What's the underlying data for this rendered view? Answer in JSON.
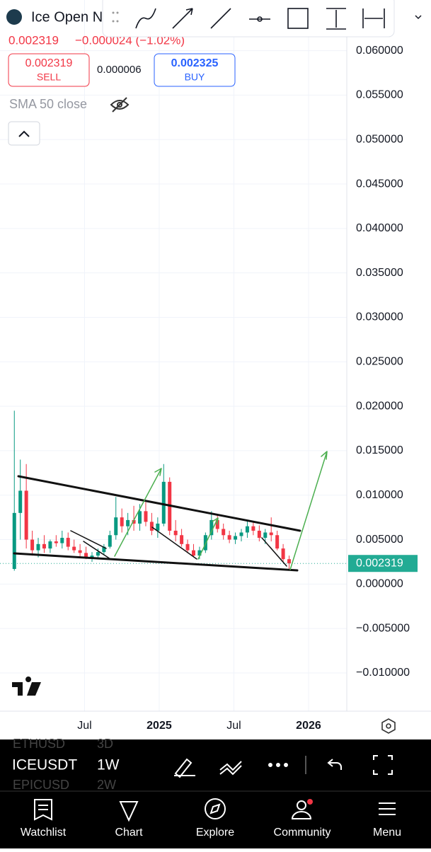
{
  "header": {
    "symbol": "Ice Open N",
    "price": "0.002319",
    "change": "−0.000024 (−1.02%)",
    "sell_price": "0.002319",
    "sell_label": "SELL",
    "spread": "0.000006",
    "buy_price": "0.002325",
    "buy_label": "BUY",
    "indicator": "SMA 50 close"
  },
  "chart_data": {
    "type": "candlestick",
    "x": [
      2024.03,
      2024.07,
      2024.11,
      2024.15,
      2024.19,
      2024.23,
      2024.27,
      2024.31,
      2024.35,
      2024.39,
      2024.43,
      2024.47,
      2024.51,
      2024.55,
      2024.59,
      2024.63,
      2024.67,
      2024.71,
      2024.75,
      2024.79,
      2024.83,
      2024.87,
      2024.91,
      2024.95,
      2024.99,
      2025.03,
      2025.07,
      2025.11,
      2025.15,
      2025.19,
      2025.23,
      2025.27,
      2025.31,
      2025.35,
      2025.39,
      2025.43,
      2025.47,
      2025.51,
      2025.55,
      2025.59,
      2025.63,
      2025.67,
      2025.71,
      2025.75,
      2025.79,
      2025.83,
      2025.87
    ],
    "open": [
      0.0017,
      0.008,
      0.0105,
      0.005,
      0.0038,
      0.0045,
      0.004,
      0.0048,
      0.0046,
      0.0052,
      0.0042,
      0.0038,
      0.0035,
      0.003,
      0.0032,
      0.0036,
      0.0042,
      0.0055,
      0.0075,
      0.0065,
      0.0072,
      0.0068,
      0.0082,
      0.007,
      0.006,
      0.0068,
      0.0115,
      0.006,
      0.0055,
      0.0045,
      0.0038,
      0.0032,
      0.0038,
      0.0055,
      0.0072,
      0.0062,
      0.0055,
      0.005,
      0.0054,
      0.0058,
      0.0065,
      0.006,
      0.0052,
      0.0058,
      0.0055,
      0.004,
      0.0028
    ],
    "high": [
      0.0195,
      0.014,
      0.0135,
      0.006,
      0.0052,
      0.0055,
      0.005,
      0.0055,
      0.006,
      0.0058,
      0.005,
      0.0045,
      0.0042,
      0.0036,
      0.004,
      0.0045,
      0.006,
      0.0098,
      0.0085,
      0.008,
      0.0088,
      0.009,
      0.0092,
      0.008,
      0.0075,
      0.0135,
      0.012,
      0.0072,
      0.0062,
      0.005,
      0.0045,
      0.0042,
      0.0058,
      0.0082,
      0.0078,
      0.0068,
      0.006,
      0.0058,
      0.0062,
      0.0072,
      0.007,
      0.0066,
      0.0062,
      0.0075,
      0.006,
      0.0045,
      0.0032
    ],
    "low": [
      0.0015,
      0.005,
      0.004,
      0.0032,
      0.003,
      0.0035,
      0.0035,
      0.0042,
      0.004,
      0.0038,
      0.0035,
      0.003,
      0.0028,
      0.0025,
      0.0028,
      0.0033,
      0.004,
      0.005,
      0.0058,
      0.0055,
      0.006,
      0.006,
      0.0065,
      0.0055,
      0.0052,
      0.0065,
      0.0055,
      0.0048,
      0.0042,
      0.0035,
      0.003,
      0.0028,
      0.0035,
      0.005,
      0.0058,
      0.005,
      0.0046,
      0.0045,
      0.0048,
      0.0052,
      0.0055,
      0.0048,
      0.0045,
      0.0048,
      0.0038,
      0.0025,
      0.0015
    ],
    "close": [
      0.008,
      0.0105,
      0.005,
      0.0038,
      0.0045,
      0.004,
      0.0048,
      0.0046,
      0.0052,
      0.0042,
      0.0038,
      0.0035,
      0.003,
      0.0032,
      0.0036,
      0.0042,
      0.0055,
      0.0075,
      0.0065,
      0.0072,
      0.0068,
      0.0082,
      0.007,
      0.006,
      0.0068,
      0.0115,
      0.006,
      0.0055,
      0.0045,
      0.0038,
      0.0032,
      0.0038,
      0.0055,
      0.0072,
      0.0062,
      0.0055,
      0.005,
      0.0054,
      0.0058,
      0.0065,
      0.006,
      0.0052,
      0.0058,
      0.0055,
      0.004,
      0.0028,
      0.002319
    ],
    "up_color": "#089981",
    "down_color": "#f23645",
    "ylim": [
      -0.0143,
      0.0657
    ],
    "yticks": [
      {
        "value": -0.01,
        "label": "−0.010000"
      },
      {
        "value": -0.005,
        "label": "−0.005000"
      },
      {
        "value": 0,
        "label": "0.000000"
      },
      {
        "value": 0.005,
        "label": "0.005000"
      },
      {
        "value": 0.01,
        "label": "0.010000"
      },
      {
        "value": 0.015,
        "label": "0.015000"
      },
      {
        "value": 0.02,
        "label": "0.020000"
      },
      {
        "value": 0.025,
        "label": "0.025000"
      },
      {
        "value": 0.03,
        "label": "0.030000"
      },
      {
        "value": 0.035,
        "label": "0.035000"
      },
      {
        "value": 0.04,
        "label": "0.040000"
      },
      {
        "value": 0.045,
        "label": "0.045000"
      },
      {
        "value": 0.05,
        "label": "0.050000"
      },
      {
        "value": 0.055,
        "label": "0.055000"
      },
      {
        "value": 0.06,
        "label": "0.060000"
      }
    ],
    "xlim": [
      2023.934,
      2026.256
    ],
    "xticks": [
      {
        "value": 2024.5,
        "label": "Jul"
      },
      2025,
      {
        "value": 2025.5,
        "label": "Jul"
      },
      2026
    ],
    "grid": true,
    "last_price": 0.002319,
    "last_price_color": "#22ab94"
  },
  "toolbar": {
    "symbol": "ICEUSDT",
    "interval": "1W",
    "ghost_symbol_1": "ETHUSD",
    "ghost_interval_1": "3D",
    "ghost_symbol_2": "EPICUSD",
    "ghost_interval_2": "2W"
  },
  "nav": [
    "Watchlist",
    "Chart",
    "Explore",
    "Community",
    "Menu"
  ]
}
